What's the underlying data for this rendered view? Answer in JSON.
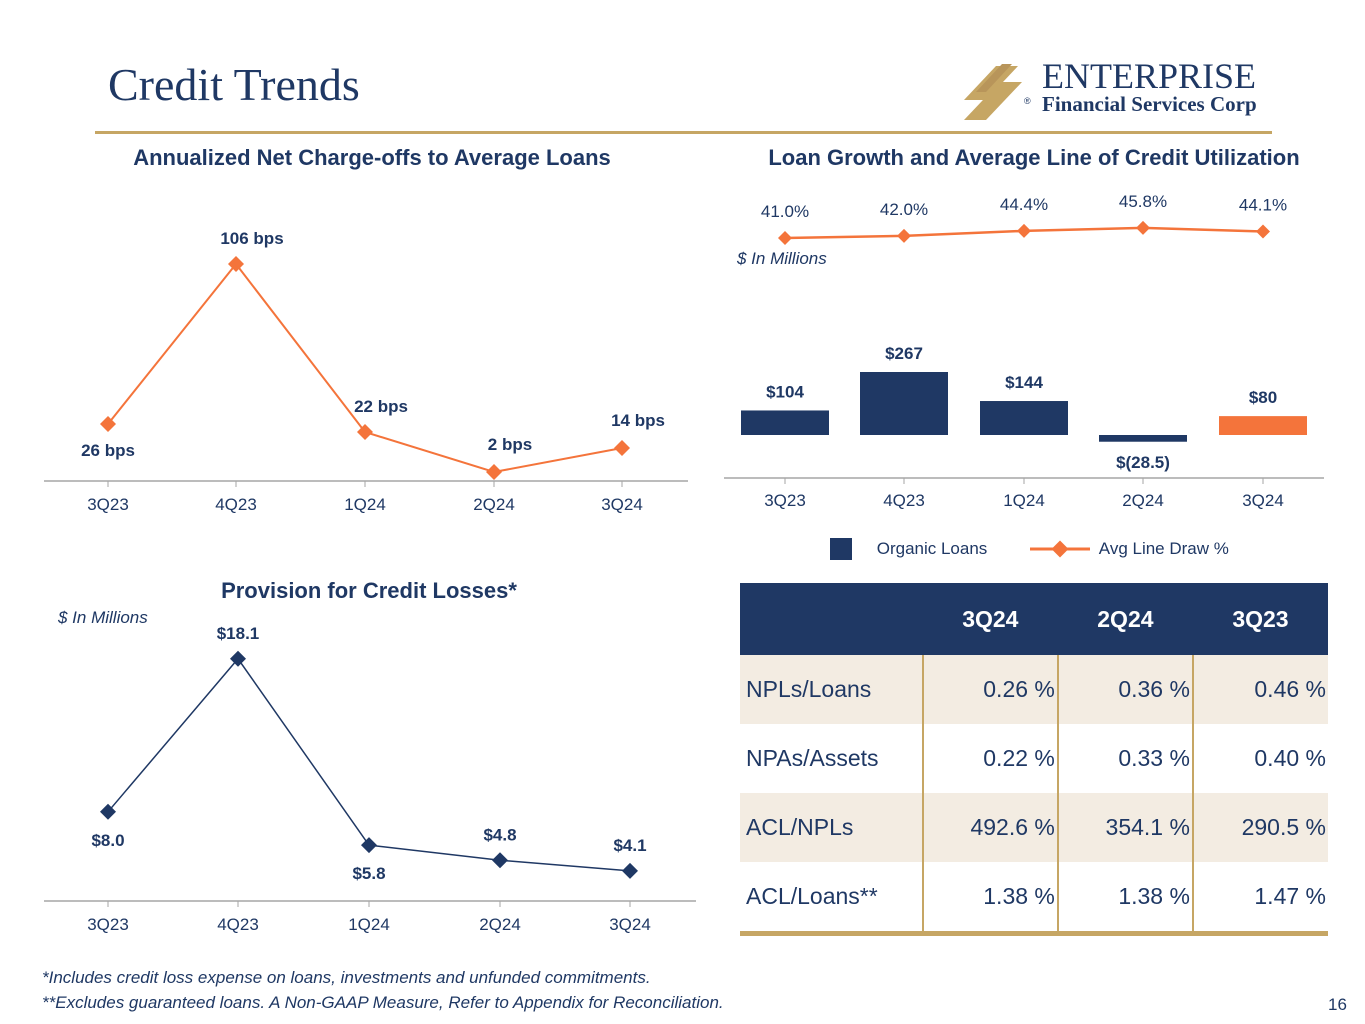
{
  "page": {
    "title": "Credit Trends",
    "page_number": "16"
  },
  "logo": {
    "line1": "ENTERPRISE",
    "line2": "Financial Services Corp",
    "mark": "®"
  },
  "colors": {
    "navy": "#1f3864",
    "orange": "#f4743b",
    "gold": "#c6a664",
    "beige": "#f3ece2"
  },
  "chart_data": [
    {
      "type": "line",
      "title": "Annualized Net Charge-offs to Average Loans",
      "categories": [
        "3Q23",
        "4Q23",
        "1Q24",
        "2Q24",
        "3Q24"
      ],
      "values": [
        26,
        106,
        22,
        2,
        14
      ],
      "value_labels": [
        "26",
        "106",
        "22",
        "2",
        "14"
      ],
      "unit_label": "bps",
      "ylim": [
        0,
        110
      ]
    },
    {
      "type": "line",
      "title": "Provision for Credit Losses*",
      "units_note": "$ In Millions",
      "categories": [
        "3Q23",
        "4Q23",
        "1Q24",
        "2Q24",
        "3Q24"
      ],
      "values": [
        8.0,
        18.1,
        5.8,
        4.8,
        4.1
      ],
      "value_labels": [
        "$8.0",
        "$18.1",
        "$5.8",
        "$4.8",
        "$4.1"
      ],
      "ylim": [
        0,
        19
      ]
    },
    {
      "type": "bar",
      "title": "Loan Growth and Average Line of Credit Utilization",
      "units_note": "$ In Millions",
      "categories": [
        "3Q23",
        "4Q23",
        "1Q24",
        "2Q24",
        "3Q24"
      ],
      "series": [
        {
          "name": "Organic Loans",
          "type": "bar",
          "values": [
            104,
            267,
            144,
            -28.5,
            80
          ],
          "value_labels": [
            "$104",
            "$267",
            "$144",
            "$(28.5)",
            "$80"
          ]
        },
        {
          "name": "Avg Line Draw %",
          "type": "line",
          "values": [
            41.0,
            42.0,
            44.4,
            45.8,
            44.1
          ],
          "value_labels": [
            "41.0%",
            "42.0%",
            "44.4%",
            "45.8%",
            "44.1%"
          ]
        }
      ],
      "legend": [
        "Organic Loans",
        "Avg Line Draw %"
      ]
    },
    {
      "type": "table",
      "columns": [
        "",
        "3Q24",
        "2Q24",
        "3Q23"
      ],
      "rows": [
        {
          "label": "NPLs/Loans",
          "values": [
            "0.26 %",
            "0.36 %",
            "0.46 %"
          ]
        },
        {
          "label": "NPAs/Assets",
          "values": [
            "0.22 %",
            "0.33 %",
            "0.40 %"
          ]
        },
        {
          "label": "ACL/NPLs",
          "values": [
            "492.6 %",
            "354.1 %",
            "290.5 %"
          ]
        },
        {
          "label": "ACL/Loans**",
          "values": [
            "1.38 %",
            "1.38 %",
            "1.47 %"
          ]
        }
      ]
    }
  ],
  "footnotes": [
    "*Includes credit loss expense on loans, investments and unfunded commitments.",
    "**Excludes guaranteed loans. A Non-GAAP Measure, Refer to Appendix for Reconciliation."
  ]
}
